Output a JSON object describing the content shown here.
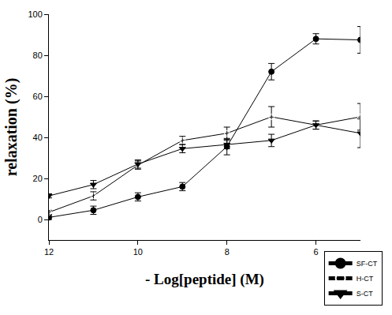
{
  "chart_data": {
    "type": "line",
    "x_label": "- Log[peptide] (M)",
    "y_label": "relaxation (%)",
    "x": [
      12,
      11,
      10,
      9,
      8,
      7,
      6,
      5
    ],
    "xlim": [
      12,
      5
    ],
    "xticks": [
      12,
      10,
      8,
      6
    ],
    "ylim": [
      -10,
      100
    ],
    "yticks": [
      0,
      20,
      40,
      60,
      80,
      100
    ],
    "grid": false,
    "legend": "bottom right",
    "series": [
      {
        "name": "SF-CT",
        "color": "#000000",
        "marker": "circle",
        "values": [
          1,
          4.5,
          11,
          16,
          35.5,
          72,
          88,
          87.5
        ],
        "errors": [
          1,
          2,
          2,
          2,
          4,
          4,
          2.5,
          6.5
        ]
      },
      {
        "name": "H-CT",
        "color": "#000000",
        "marker": "circle-open",
        "values": [
          3.5,
          11.5,
          26.5,
          38.5,
          42,
          50,
          46,
          50
        ],
        "errors": [
          1,
          2,
          2,
          2,
          3,
          5,
          2,
          6.5
        ]
      },
      {
        "name": "S-CT",
        "color": "#000000",
        "marker": "triangle-down",
        "values": [
          11.5,
          17,
          27,
          34.5,
          36.5,
          38.5,
          46,
          42
        ],
        "errors": [
          1,
          2,
          2,
          2,
          2,
          3,
          2,
          7
        ]
      }
    ]
  }
}
